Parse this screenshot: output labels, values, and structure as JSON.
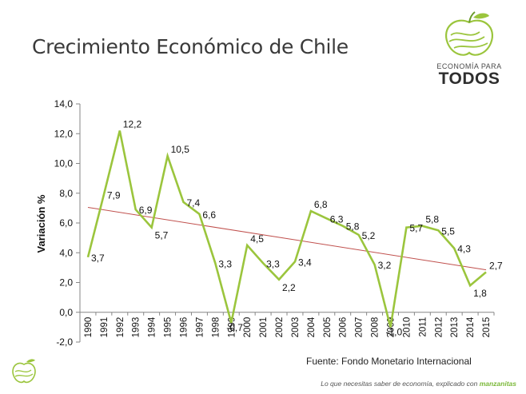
{
  "title": "Crecimiento Económico de Chile",
  "brand": {
    "line1": "ECONOMÍA PARA",
    "line2": "TODOS",
    "logo_icon": "green-apple-icon"
  },
  "source": "Fuente: Fondo Monetario Internacional",
  "tagline": {
    "text": "Lo que necesitas saber de economía, explicado con ",
    "brand": "manzanitas"
  },
  "colors": {
    "series": "#9bc53d",
    "trendline": "#c0504d",
    "axis": "#868686",
    "brand_green": "#7ab838"
  },
  "chart_data": {
    "type": "line",
    "title": "",
    "xlabel": "",
    "ylabel": "Variación %",
    "ylim": [
      -2.0,
      14.0
    ],
    "ytick_step": 2.0,
    "ytick_labels": [
      "14,0",
      "12,0",
      "10,0",
      "8,0",
      "6,0",
      "4,0",
      "2,0",
      "0,0",
      "-2,0"
    ],
    "grid": false,
    "legend": "none",
    "categories": [
      "1990",
      "1991",
      "1992",
      "1993",
      "1994",
      "1995",
      "1996",
      "1997",
      "1998",
      "1999",
      "2000",
      "2001",
      "2002",
      "2003",
      "2004",
      "2005",
      "2006",
      "2007",
      "2008",
      "2009",
      "2010",
      "2011",
      "2012",
      "2013",
      "2014",
      "2015"
    ],
    "series": [
      {
        "values": [
          3.7,
          7.9,
          12.2,
          6.9,
          5.7,
          10.5,
          7.4,
          6.6,
          3.3,
          -0.7,
          4.5,
          3.3,
          2.2,
          3.4,
          6.8,
          6.3,
          5.8,
          5.2,
          3.2,
          -1.0,
          5.7,
          5.8,
          5.5,
          4.3,
          1.8,
          2.7
        ],
        "labels": [
          "3,7",
          "7,9",
          "12,2",
          "6,9",
          "5,7",
          "10,5",
          "7,4",
          "6,6",
          "3,3",
          "-0,7",
          "4,5",
          "3,3",
          "2,2",
          "3,4",
          "6,8",
          "6,3",
          "5,8",
          "5,2",
          "3,2",
          "-1,0",
          "5,7",
          "5,8",
          "5,5",
          "4,3",
          "1,8",
          "2,7"
        ]
      }
    ],
    "trendline": {
      "type": "linear",
      "start": 7.05,
      "end": 2.85
    }
  }
}
